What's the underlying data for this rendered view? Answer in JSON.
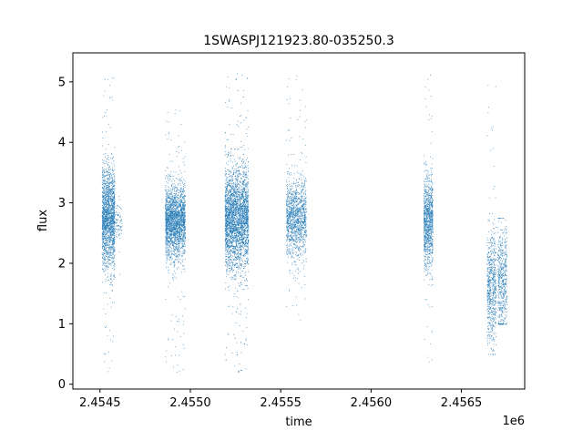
{
  "chart_data": {
    "type": "scatter",
    "title": "1SWASPJ121923.80-035250.3",
    "xlabel": "time",
    "ylabel": "flux",
    "x_offset_label": "1e6",
    "xlim": [
      2.45435,
      2.45685
    ],
    "ylim": [
      -0.08,
      5.48
    ],
    "x_ticks": [
      2.4545,
      2.455,
      2.4555,
      2.456,
      2.4565
    ],
    "x_tick_labels": [
      "2.4545",
      "2.4550",
      "2.4555",
      "2.4560",
      "2.4565"
    ],
    "y_ticks": [
      0,
      1,
      2,
      3,
      4,
      5
    ],
    "y_tick_labels": [
      "0",
      "1",
      "2",
      "3",
      "4",
      "5"
    ],
    "grid": false,
    "marker_color": "#1f77b4",
    "series": [
      {
        "clusters": [
          {
            "x_range": [
              2.45451,
              2.45458
            ],
            "center": 2.75,
            "spread": 0.42,
            "low": 0.2,
            "high": 5.2,
            "density": 1800
          },
          {
            "x_range": [
              2.45458,
              2.45462
            ],
            "center": 2.7,
            "spread": 0.15,
            "low": 1.8,
            "high": 3.2,
            "density": 80
          },
          {
            "x_range": [
              2.45486,
              2.45497
            ],
            "center": 2.7,
            "spread": 0.3,
            "low": 0.15,
            "high": 4.6,
            "density": 2200
          },
          {
            "x_range": [
              2.45519,
              2.45532
            ],
            "center": 2.75,
            "spread": 0.42,
            "low": 0.15,
            "high": 5.2,
            "density": 3200
          },
          {
            "x_range": [
              2.45553,
              2.45564
            ],
            "center": 2.75,
            "spread": 0.32,
            "low": 1.0,
            "high": 5.15,
            "density": 1300
          },
          {
            "x_range": [
              2.45629,
              2.45634
            ],
            "center": 2.7,
            "spread": 0.38,
            "low": 0.3,
            "high": 5.2,
            "density": 1000
          },
          {
            "x_range": [
              2.45664,
              2.45669
            ],
            "center": 1.6,
            "spread": 0.45,
            "low": 0.5,
            "high": 5.05,
            "density": 650
          },
          {
            "x_range": [
              2.4567,
              2.45675
            ],
            "center": 1.75,
            "spread": 0.45,
            "low": 1.0,
            "high": 2.75,
            "density": 550
          }
        ]
      }
    ]
  }
}
